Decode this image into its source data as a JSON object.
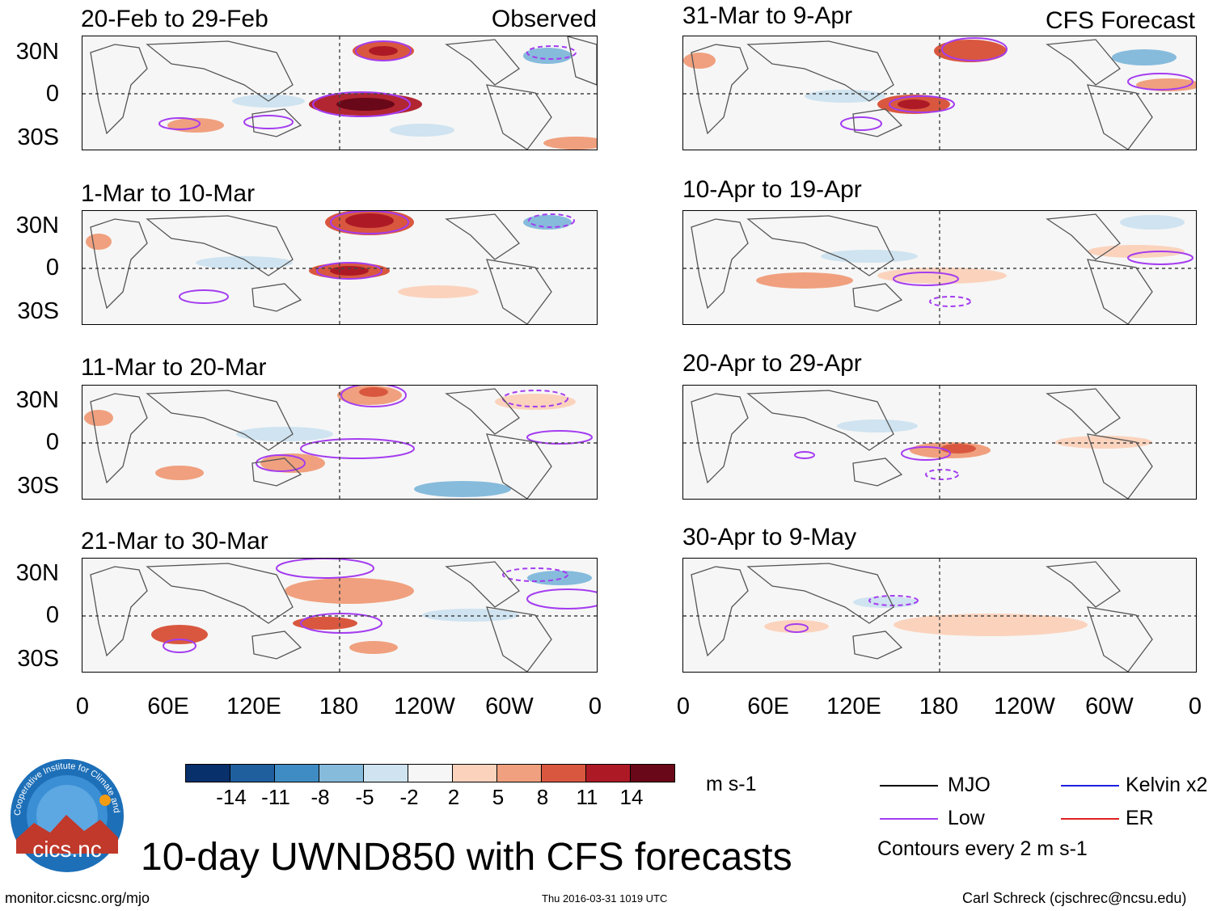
{
  "figure": {
    "title": "10-day UWND850 with CFS forecasts",
    "observed_label": "Observed",
    "forecast_label": "CFS Forecast",
    "units": "m s-1",
    "logo_text": "cics.nc",
    "logo_ring_text": "Cooperative Institute for Climate and Satellites"
  },
  "panels": {
    "observed": [
      {
        "title": "20-Feb to 29-Feb"
      },
      {
        "title": "1-Mar to 10-Mar"
      },
      {
        "title": "11-Mar to 20-Mar"
      },
      {
        "title": "21-Mar to 30-Mar"
      }
    ],
    "forecast": [
      {
        "title": "31-Mar to 9-Apr"
      },
      {
        "title": "10-Apr to 19-Apr"
      },
      {
        "title": "20-Apr to 29-Apr"
      },
      {
        "title": "30-Apr to 9-May"
      }
    ]
  },
  "axes": {
    "lat_labels": [
      "30N",
      "0",
      "30S"
    ],
    "lon_labels": [
      "0",
      "60E",
      "120E",
      "180",
      "120W",
      "60W",
      "0"
    ]
  },
  "colorbar": {
    "labels": [
      "-14",
      "-11",
      "-8",
      "-5",
      "-2",
      "2",
      "5",
      "8",
      "11",
      "14"
    ],
    "colors": [
      "#08306b",
      "#1f5f9e",
      "#3f8cc4",
      "#86bbdc",
      "#cfe3f0",
      "#f6f6f6",
      "#fbd3bd",
      "#f0a07e",
      "#d9573f",
      "#ad1a26",
      "#690818"
    ]
  },
  "legend": {
    "items": [
      {
        "label": "MJO",
        "color": "#000000"
      },
      {
        "label": "Kelvin x2",
        "color": "#1f1fe0"
      },
      {
        "label": "Low",
        "color": "#a43cf0"
      },
      {
        "label": "ER",
        "color": "#e02020"
      }
    ],
    "note": "Contours every 2 m s-1"
  },
  "footer": {
    "url": "monitor.cicsnc.org/mjo",
    "timestamp": "Thu 2016-03-31 1019 UTC",
    "credit": "Carl Schreck (cjschrec@ncsu.edu)"
  }
}
